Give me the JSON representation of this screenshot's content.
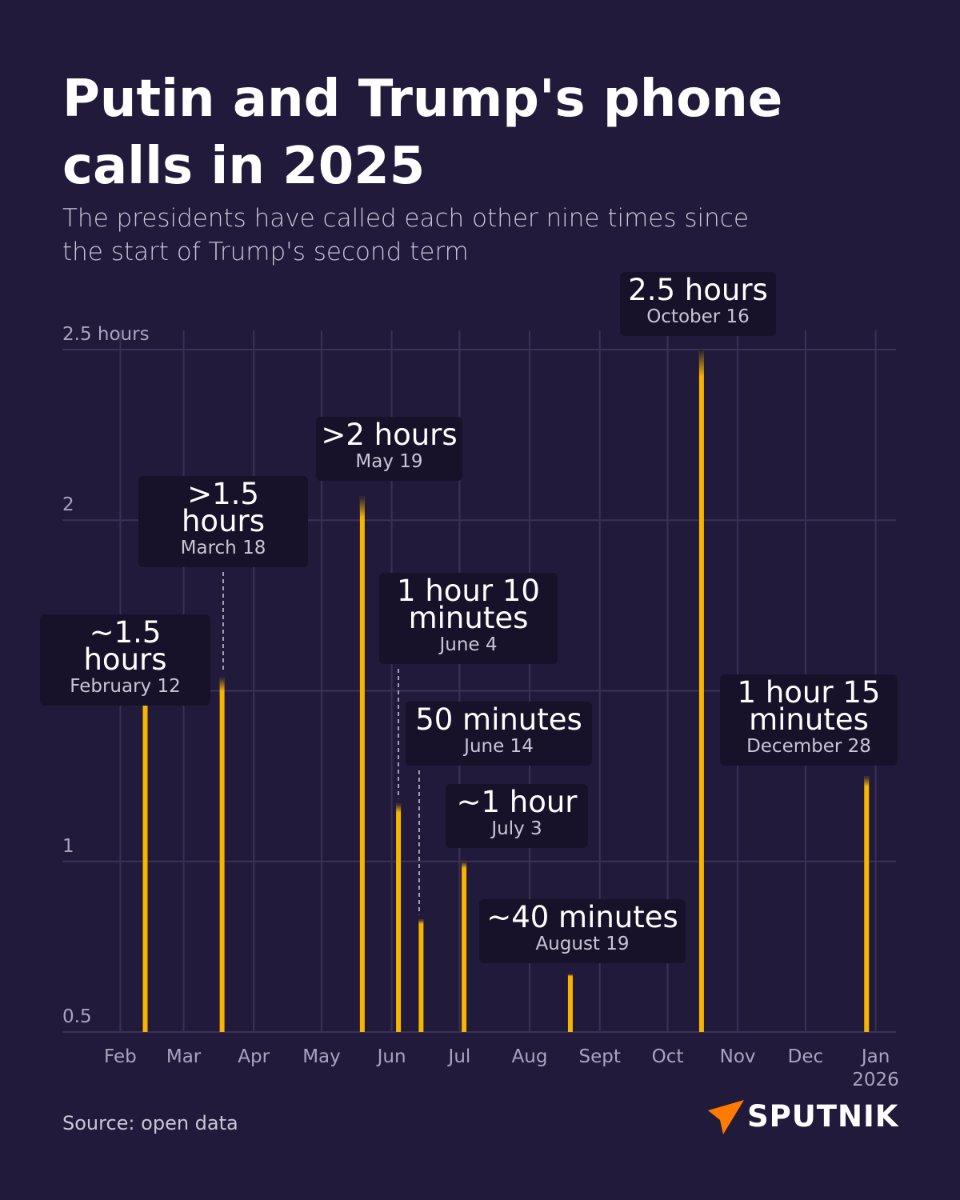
{
  "chart_data": {
    "type": "bar",
    "title": "Putin and Trump's phone calls in 2025",
    "subtitle": "The presidents have called each other nine times since the start of Trump's second term",
    "source": "Source: open data",
    "brand": "SPUTNIK",
    "x": [
      "2025-02-12",
      "2025-03-18",
      "2025-05-19",
      "2025-06-04",
      "2025-06-14",
      "2025-07-03",
      "2025-08-19",
      "2025-10-16",
      "2025-12-28"
    ],
    "values": [
      1.5,
      1.54,
      2.07,
      1.17,
      0.83,
      1.0,
      0.67,
      2.5,
      1.25
    ],
    "value_labels": [
      "~1.5 hours",
      ">1.5 hours",
      ">2 hours",
      "1 hour 10 minutes",
      "50 minutes",
      "~1 hour",
      "~40 minutes",
      "2.5 hours",
      "1 hour 15 minutes"
    ],
    "date_labels": [
      "February 12",
      "March 18",
      "May 19",
      "June 4",
      "June 14",
      "July 3",
      "August 19",
      "October 16",
      "December 28"
    ],
    "color": "#f7b500",
    "xlim": [
      "2025-01-17",
      "2026-01-10"
    ],
    "xticks": [
      {
        "value": "2025-02-01",
        "label": "Feb"
      },
      {
        "value": "2025-03-01",
        "label": "Mar"
      },
      {
        "value": "2025-04-01",
        "label": "Apr"
      },
      {
        "value": "2025-05-01",
        "label": "May"
      },
      {
        "value": "2025-06-01",
        "label": "Jun"
      },
      {
        "value": "2025-07-01",
        "label": "Jul"
      },
      {
        "value": "2025-08-01",
        "label": "Aug"
      },
      {
        "value": "2025-09-01",
        "label": "Sept"
      },
      {
        "value": "2025-10-01",
        "label": "Oct"
      },
      {
        "value": "2025-11-01",
        "label": "Nov"
      },
      {
        "value": "2025-12-01",
        "label": "Dec"
      },
      {
        "value": "2026-01-01",
        "label": "Jan 2026"
      }
    ],
    "ylim": [
      0.5,
      2.5
    ],
    "yticks": [
      0.5,
      1,
      {
        "value": 1.5,
        "label": null
      },
      2,
      {
        "value": 2.5,
        "label": "2.5 hours"
      }
    ],
    "grid": true
  }
}
